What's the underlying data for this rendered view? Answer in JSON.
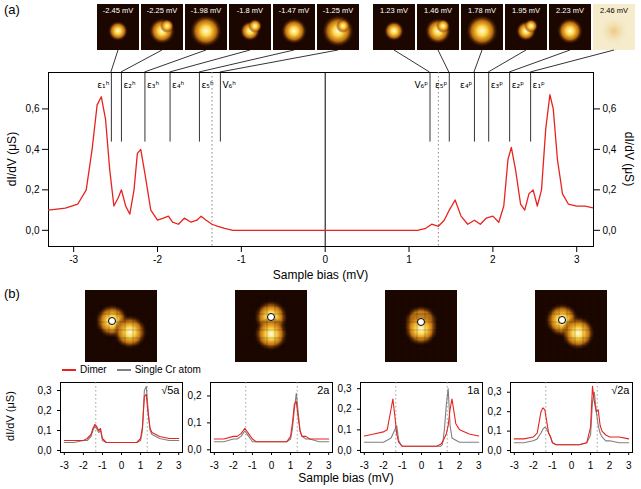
{
  "chart_data": [
    {
      "type": "line",
      "panel_label": "(a)",
      "x_label": "Sample bias (mV)",
      "y_label": "dI/dV (μS)",
      "y2_label": "dI/dV (μS)",
      "xlim": [
        -3.3,
        3.2
      ],
      "ylim": [
        -0.08,
        0.78
      ],
      "xticks": [
        -3,
        -2,
        -1,
        0,
        1,
        2,
        3
      ],
      "yticks": [
        {
          "value": 0,
          "label": "0,0"
        },
        {
          "value": 0.2,
          "label": "0,2"
        },
        {
          "value": 0.4,
          "label": "0,4"
        },
        {
          "value": 0.6,
          "label": "0,6"
        }
      ],
      "color": "#e8231e",
      "x": [
        -3.3,
        -3.1,
        -2.95,
        -2.85,
        -2.78,
        -2.72,
        -2.67,
        -2.62,
        -2.57,
        -2.52,
        -2.47,
        -2.43,
        -2.38,
        -2.33,
        -2.28,
        -2.24,
        -2.2,
        -2.15,
        -2.08,
        -2.0,
        -1.93,
        -1.87,
        -1.82,
        -1.75,
        -1.68,
        -1.6,
        -1.53,
        -1.48,
        -1.42,
        -1.35,
        -1.28,
        -1.2,
        -1.1,
        -0.9,
        -0.5,
        0,
        0.5,
        0.9,
        1.1,
        1.2,
        1.27,
        1.35,
        1.42,
        1.48,
        1.55,
        1.62,
        1.7,
        1.78,
        1.85,
        1.92,
        2.0,
        2.07,
        2.13,
        2.18,
        2.22,
        2.27,
        2.33,
        2.38,
        2.43,
        2.48,
        2.53,
        2.58,
        2.63,
        2.68,
        2.72,
        2.77,
        2.83,
        2.9,
        3.0,
        3.1,
        3.2
      ],
      "values": [
        0.1,
        0.11,
        0.13,
        0.2,
        0.4,
        0.62,
        0.66,
        0.55,
        0.3,
        0.12,
        0.16,
        0.2,
        0.12,
        0.08,
        0.2,
        0.38,
        0.4,
        0.28,
        0.1,
        0.05,
        0.06,
        0.07,
        0.04,
        0.03,
        0.06,
        0.04,
        0.05,
        0.07,
        0.05,
        0.03,
        0.02,
        0.01,
        0.0,
        0.0,
        0.0,
        0.0,
        0.0,
        0.0,
        0.0,
        0.01,
        0.03,
        0.02,
        0.05,
        0.1,
        0.15,
        0.07,
        0.03,
        0.05,
        0.03,
        0.06,
        0.07,
        0.04,
        0.12,
        0.35,
        0.41,
        0.3,
        0.13,
        0.1,
        0.18,
        0.2,
        0.12,
        0.2,
        0.5,
        0.67,
        0.6,
        0.35,
        0.18,
        0.13,
        0.12,
        0.12,
        0.11
      ],
      "vlines": [
        {
          "x": -1.35,
          "line_style": "dotted"
        },
        {
          "x": 0,
          "line_style": "solid"
        },
        {
          "x": 1.35,
          "line_style": "dotted"
        }
      ],
      "peaks": [
        {
          "label": "ε₁ʰ",
          "x": -2.55,
          "image": "-2.45 mV"
        },
        {
          "label": "ε₂ʰ",
          "x": -2.43,
          "image": "-2.25 mV"
        },
        {
          "label": "ε₃ʰ",
          "x": -2.15,
          "image": "-1.98 mV"
        },
        {
          "label": "ε₄ʰ",
          "x": -1.85,
          "image": "-1.8 mV"
        },
        {
          "label": "ε₅ʰ",
          "x": -1.5,
          "image": "-1.47 mV"
        },
        {
          "label": "V₆ʰ",
          "x": -1.25,
          "image": "-1.25 mV"
        },
        {
          "label": "V₆ᵖ",
          "x": 1.25,
          "image": "1.23 mV"
        },
        {
          "label": "ε₅ᵖ",
          "x": 1.48,
          "image": "1.46 mV"
        },
        {
          "label": "ε₄ᵖ",
          "x": 1.78,
          "image": "1.78 mV"
        },
        {
          "label": "ε₃ᵖ",
          "x": 1.95,
          "image": "1.95 mV"
        },
        {
          "label": "ε₂ᵖ",
          "x": 2.2,
          "image": "2.23 mV"
        },
        {
          "label": "ε₁ᵖ",
          "x": 2.45,
          "image": "2.46 mV"
        }
      ]
    },
    {
      "type": "line",
      "panel_label": "(b)",
      "x_label": "Sample bias (mV)",
      "y_label": "dI/dV (μS)",
      "legend": "top",
      "annotation": "√5a",
      "xlim": [
        -3.2,
        3.2
      ],
      "ylim": [
        -0.01,
        0.34
      ],
      "xticks": [
        -3,
        -2,
        -1,
        0,
        1,
        2,
        3
      ],
      "yticks": [
        {
          "value": 0,
          "label": "0,0"
        },
        {
          "value": 0.1,
          "label": "0,1"
        },
        {
          "value": 0.2,
          "label": "0,2"
        },
        {
          "value": 0.3,
          "label": "0,3"
        }
      ],
      "vlines": [
        {
          "x": -1.35,
          "line_style": "dotted"
        },
        {
          "x": 1.35,
          "line_style": "dotted"
        }
      ],
      "x": [
        -3,
        -2.5,
        -2,
        -1.8,
        -1.6,
        -1.5,
        -1.4,
        -1.3,
        -1.2,
        -1.1,
        -1,
        -0.8,
        -0.4,
        0,
        0.4,
        0.8,
        1,
        1.1,
        1.2,
        1.3,
        1.4,
        1.5,
        1.6,
        1.8,
        2,
        2.5,
        3
      ],
      "series": [
        {
          "name": "Dimer",
          "color": "#e8231e",
          "values": [
            0.05,
            0.05,
            0.05,
            0.06,
            0.08,
            0.11,
            0.13,
            0.12,
            0.1,
            0.11,
            0.06,
            0.04,
            0.04,
            0.04,
            0.04,
            0.04,
            0.06,
            0.12,
            0.27,
            0.28,
            0.18,
            0.11,
            0.09,
            0.08,
            0.07,
            0.06,
            0.06
          ]
        },
        {
          "name": "Single Cr atom",
          "color": "#808080",
          "values": [
            0.04,
            0.04,
            0.05,
            0.05,
            0.07,
            0.1,
            0.12,
            0.11,
            0.09,
            0.1,
            0.05,
            0.04,
            0.04,
            0.04,
            0.04,
            0.04,
            0.05,
            0.1,
            0.3,
            0.32,
            0.2,
            0.1,
            0.08,
            0.07,
            0.06,
            0.05,
            0.05
          ]
        }
      ]
    },
    {
      "type": "line",
      "annotation": "2a",
      "xlim": [
        -3.2,
        3.2
      ],
      "ylim": [
        -0.01,
        0.25
      ],
      "xticks": [
        -3,
        -2,
        -1,
        0,
        1,
        2,
        3
      ],
      "yticks": [
        {
          "value": 0,
          "label": "0,0"
        },
        {
          "value": 0.1,
          "label": "0,1"
        },
        {
          "value": 0.2,
          "label": "0,2"
        }
      ],
      "vlines": [
        {
          "x": -1.35,
          "line_style": "dotted"
        },
        {
          "x": 1.35,
          "line_style": "dotted"
        }
      ],
      "x": [
        -3,
        -2.5,
        -2,
        -1.8,
        -1.6,
        -1.5,
        -1.4,
        -1.3,
        -1.2,
        -1.1,
        -1,
        -0.8,
        -0.4,
        0,
        0.4,
        0.8,
        1,
        1.1,
        1.2,
        1.3,
        1.4,
        1.5,
        1.6,
        1.8,
        2,
        2.5,
        3
      ],
      "series": [
        {
          "name": "Dimer",
          "color": "#e8231e",
          "values": [
            0.04,
            0.04,
            0.05,
            0.05,
            0.06,
            0.07,
            0.08,
            0.07,
            0.06,
            0.05,
            0.04,
            0.03,
            0.03,
            0.03,
            0.03,
            0.03,
            0.05,
            0.1,
            0.17,
            0.18,
            0.12,
            0.07,
            0.05,
            0.05,
            0.04,
            0.04,
            0.04
          ]
        },
        {
          "name": "Single Cr atom",
          "color": "#808080",
          "values": [
            0.03,
            0.03,
            0.04,
            0.04,
            0.05,
            0.06,
            0.07,
            0.06,
            0.05,
            0.04,
            0.03,
            0.03,
            0.03,
            0.03,
            0.03,
            0.03,
            0.04,
            0.08,
            0.15,
            0.21,
            0.14,
            0.07,
            0.05,
            0.04,
            0.04,
            0.03,
            0.03
          ]
        }
      ]
    },
    {
      "type": "line",
      "annotation": "1a",
      "xlim": [
        -3.2,
        3.2
      ],
      "ylim": [
        -0.01,
        0.33
      ],
      "xticks": [
        -3,
        -2,
        -1,
        0,
        1,
        2,
        3
      ],
      "yticks": [
        {
          "value": 0,
          "label": "0,0"
        },
        {
          "value": 0.1,
          "label": "0,1"
        },
        {
          "value": 0.2,
          "label": "0,2"
        },
        {
          "value": 0.3,
          "label": "0,3"
        }
      ],
      "vlines": [
        {
          "x": -1.35,
          "line_style": "dotted"
        },
        {
          "x": 1.35,
          "line_style": "dotted"
        }
      ],
      "x": [
        -3,
        -2.5,
        -2,
        -1.8,
        -1.6,
        -1.5,
        -1.4,
        -1.3,
        -1.2,
        -1.1,
        -1,
        -0.8,
        -0.4,
        0,
        0.4,
        0.8,
        1,
        1.1,
        1.2,
        1.3,
        1.4,
        1.5,
        1.6,
        1.8,
        2,
        2.5,
        3
      ],
      "series": [
        {
          "name": "Dimer",
          "color": "#e8231e",
          "values": [
            0.07,
            0.08,
            0.09,
            0.1,
            0.2,
            0.25,
            0.17,
            0.08,
            0.04,
            0.03,
            0.02,
            0.02,
            0.02,
            0.02,
            0.02,
            0.02,
            0.03,
            0.04,
            0.06,
            0.08,
            0.12,
            0.2,
            0.25,
            0.13,
            0.1,
            0.08,
            0.07
          ]
        },
        {
          "name": "Single Cr atom",
          "color": "#808080",
          "values": [
            0.04,
            0.04,
            0.04,
            0.05,
            0.06,
            0.08,
            0.1,
            0.12,
            0.05,
            0.03,
            0.02,
            0.02,
            0.02,
            0.02,
            0.02,
            0.02,
            0.02,
            0.03,
            0.1,
            0.22,
            0.3,
            0.12,
            0.06,
            0.05,
            0.04,
            0.04,
            0.04
          ]
        }
      ]
    },
    {
      "type": "line",
      "annotation": "√2a",
      "xlim": [
        -3.2,
        3.2
      ],
      "ylim": [
        -0.01,
        0.35
      ],
      "xticks": [
        -3,
        -2,
        -1,
        0,
        1,
        2,
        3
      ],
      "yticks": [
        {
          "value": 0,
          "label": "0,0"
        },
        {
          "value": 0.1,
          "label": "0,1"
        },
        {
          "value": 0.2,
          "label": "0,2"
        },
        {
          "value": 0.3,
          "label": "0,3"
        }
      ],
      "vlines": [
        {
          "x": -1.35,
          "line_style": "dotted"
        },
        {
          "x": 1.35,
          "line_style": "dotted"
        }
      ],
      "x": [
        -3,
        -2.5,
        -2,
        -1.8,
        -1.6,
        -1.5,
        -1.4,
        -1.3,
        -1.2,
        -1.1,
        -1,
        -0.8,
        -0.4,
        0,
        0.4,
        0.8,
        1,
        1.1,
        1.2,
        1.3,
        1.4,
        1.5,
        1.6,
        1.8,
        2,
        2.5,
        3
      ],
      "series": [
        {
          "name": "Dimer",
          "color": "#e8231e",
          "values": [
            0.06,
            0.06,
            0.07,
            0.09,
            0.2,
            0.22,
            0.21,
            0.15,
            0.09,
            0.07,
            0.04,
            0.03,
            0.03,
            0.03,
            0.03,
            0.04,
            0.12,
            0.33,
            0.25,
            0.2,
            0.21,
            0.13,
            0.1,
            0.08,
            0.07,
            0.07,
            0.06
          ]
        },
        {
          "name": "Single Cr atom",
          "color": "#808080",
          "values": [
            0.04,
            0.04,
            0.05,
            0.06,
            0.09,
            0.11,
            0.12,
            0.11,
            0.09,
            0.07,
            0.04,
            0.03,
            0.03,
            0.03,
            0.03,
            0.04,
            0.08,
            0.25,
            0.3,
            0.2,
            0.13,
            0.09,
            0.07,
            0.05,
            0.05,
            0.04,
            0.04
          ]
        }
      ]
    }
  ]
}
